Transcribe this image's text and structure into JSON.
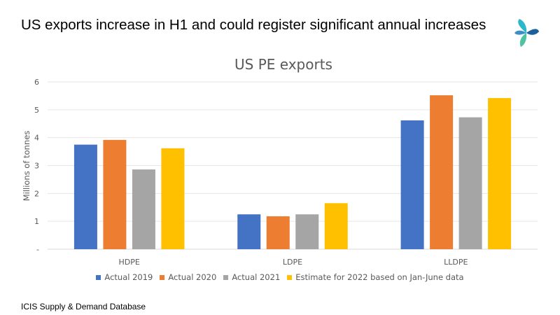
{
  "headline": "US exports increase in H1 and could register significant annual increases",
  "logo_icon": "icis-pinwheel-logo",
  "source": "ICIS Supply  & Demand Database",
  "chart_data": {
    "type": "bar",
    "title": "US PE exports",
    "xlabel": "",
    "ylabel": "Millions of tonnes",
    "ylim": [
      0,
      6
    ],
    "yticks": [
      0,
      1,
      2,
      3,
      4,
      5,
      6
    ],
    "ytick_labels": [
      "-",
      "1",
      "2",
      "3",
      "4",
      "5",
      "6"
    ],
    "grid": true,
    "legend_position": "bottom",
    "categories": [
      "HDPE",
      "LDPE",
      "LLDPE"
    ],
    "series": [
      {
        "name": "Actual 2019",
        "color": "#4472C4",
        "values": [
          3.75,
          1.25,
          4.62
        ]
      },
      {
        "name": "Actual 2020",
        "color": "#ED7D31",
        "values": [
          3.92,
          1.18,
          5.52
        ]
      },
      {
        "name": "Actual 2021",
        "color": "#A5A5A5",
        "values": [
          2.86,
          1.25,
          4.73
        ]
      },
      {
        "name": "Estimate for 2022 based on Jan-June data",
        "color": "#FFC000",
        "values": [
          3.62,
          1.65,
          5.42
        ]
      }
    ]
  }
}
